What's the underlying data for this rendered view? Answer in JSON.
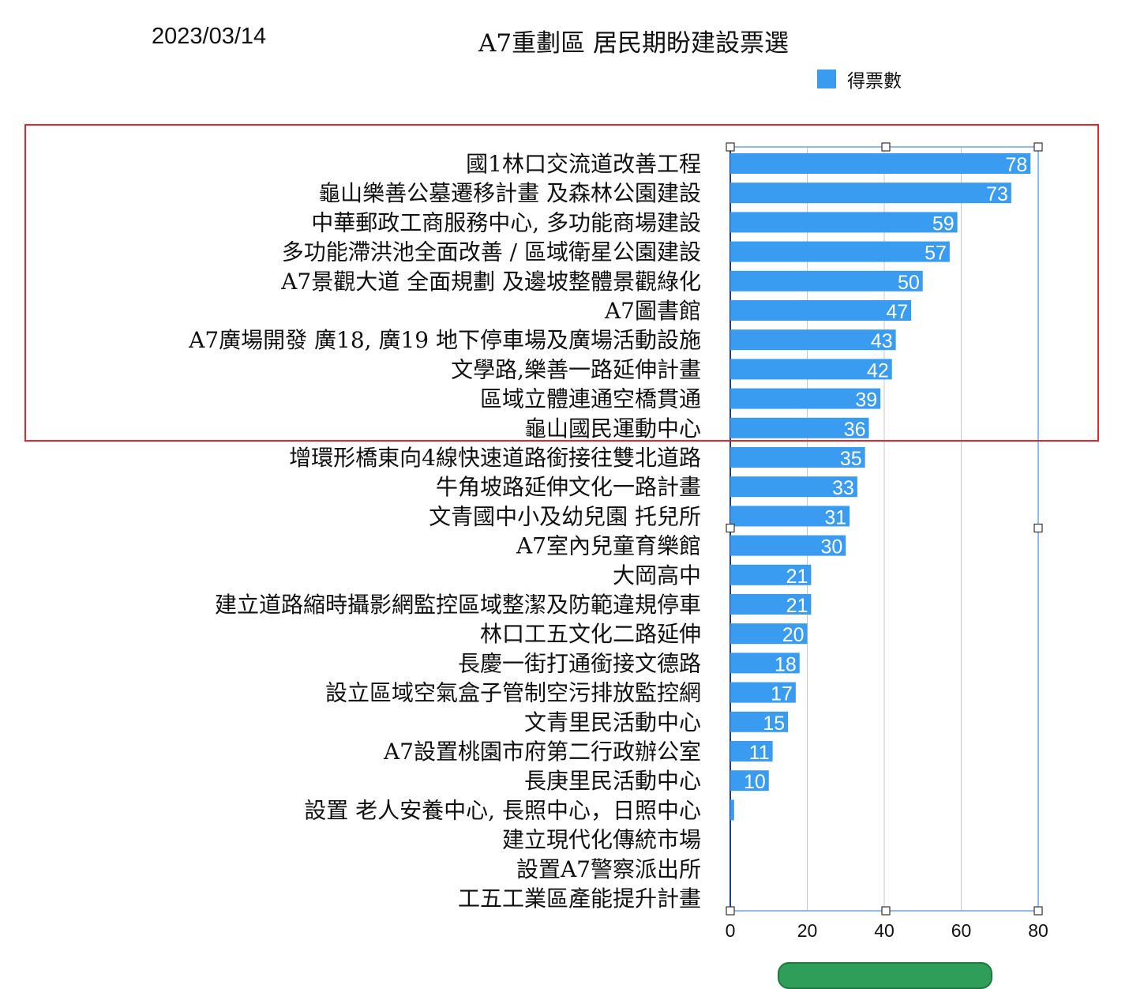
{
  "header": {
    "date": "2023/03/14",
    "title": "A7重劃區 居民期盼建設票選"
  },
  "colors": {
    "bar": "#3a9cf0",
    "grid": "#c8c8c8",
    "selection": "#6aa6e8",
    "highlight": "#e8262a"
  },
  "chart_data": {
    "type": "bar",
    "orientation": "horizontal",
    "title": "A7重劃區 居民期盼建設票選",
    "legend": {
      "position": "top-right",
      "entries": [
        "得票數"
      ]
    },
    "series": [
      {
        "name": "得票數",
        "values": [
          78,
          73,
          59,
          57,
          50,
          47,
          43,
          42,
          39,
          36,
          35,
          33,
          31,
          30,
          21,
          21,
          20,
          18,
          17,
          15,
          11,
          10,
          1,
          0,
          0,
          0
        ]
      }
    ],
    "categories": [
      "國1林口交流道改善工程",
      "龜山樂善公墓遷移計畫 及森林公園建設",
      "中華郵政工商服務中心, 多功能商場建設",
      "多功能滯洪池全面改善 / 區域衛星公園建設",
      "A7景觀大道 全面規劃 及邊坡整體景觀綠化",
      "A7圖書館",
      "A7廣場開發 廣18, 廣19 地下停車場及廣場活動設施",
      "文學路,樂善一路延伸計畫",
      "區域立體連通空橋貫通",
      "龜山國民運動中心",
      "增環形橋東向4線快速道路銜接往雙北道路",
      "牛角坡路延伸文化一路計畫",
      "文青國中小及幼兒園  托兒所",
      "A7室內兒童育樂館",
      "大岡高中",
      "建立道路縮時攝影網監控區域整潔及防範違規停車",
      "林口工五文化二路延伸",
      "長慶一街打通銜接文德路",
      "設立區域空氣盒子管制空污排放監控網",
      "文青里民活動中心",
      "A7設置桃園市府第二行政辦公室",
      "長庚里民活動中心",
      "設置 老人安養中心, 長照中心，日照中心",
      "建立現代化傳統市場",
      "設置A7警察派出所",
      "工五工業區產能提升計畫"
    ],
    "data_labels": [
      "78",
      "73",
      "59",
      "57",
      "50",
      "47",
      "43",
      "42",
      "39",
      "36",
      "35",
      "33",
      "31",
      "30",
      "21",
      "21",
      "20",
      "18",
      "17",
      "15",
      "11",
      "10",
      "",
      "",
      "",
      ""
    ],
    "xlim": [
      0,
      80
    ],
    "xticks": [
      "0",
      "20",
      "40",
      "60",
      "80"
    ],
    "grid": true,
    "highlighted_rows": 10
  }
}
